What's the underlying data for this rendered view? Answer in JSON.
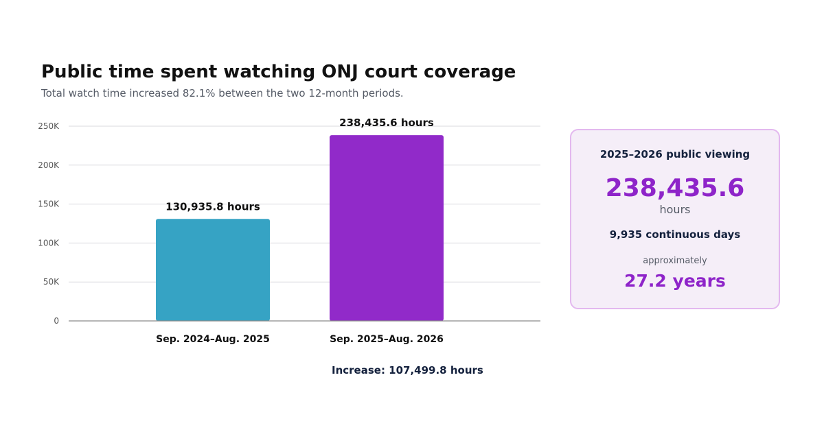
{
  "header": {
    "title": "Public time spent watching ONJ court coverage",
    "subtitle": "Total watch time increased 82.1% between the two 12-month periods."
  },
  "chart_data": {
    "type": "bar",
    "categories": [
      "Sep. 2024–Aug. 2025",
      "Sep. 2025–Aug. 2026"
    ],
    "values": [
      130935.8,
      238435.6
    ],
    "data_labels": [
      "130,935.8 hours",
      "238,435.6 hours"
    ],
    "colors": [
      "#36a3c4",
      "#912ac9"
    ],
    "ylim": [
      0,
      250000
    ],
    "yticks": [
      0,
      50000,
      100000,
      150000,
      200000,
      250000
    ],
    "ytick_labels": [
      "0",
      "50K",
      "100K",
      "150K",
      "200K",
      "250K"
    ],
    "grid": true,
    "xlabel": "",
    "ylabel": ""
  },
  "increase_note": "Increase: 107,499.8 hours",
  "summary_card": {
    "title": "2025–2026 public viewing",
    "value": "238,435.6",
    "unit": "hours",
    "days": "9,935 continuous days",
    "approx": "approximately",
    "years": "27.2 years"
  }
}
